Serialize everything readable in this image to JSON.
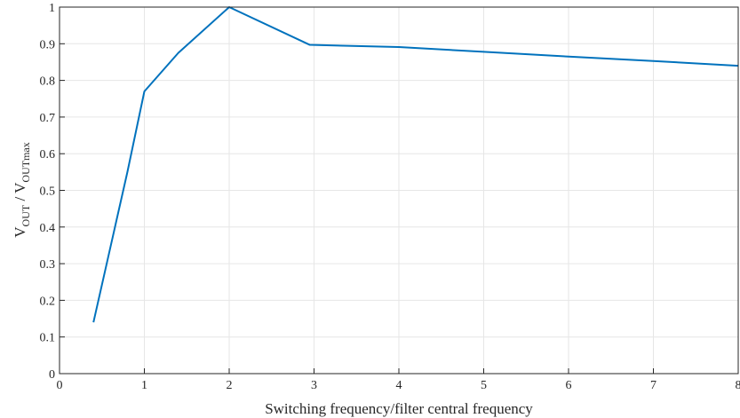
{
  "chart_data": {
    "type": "line",
    "xlabel": "Switching frequency/filter central frequency",
    "ylabel": {
      "v1": "V",
      "sub1": "OUT",
      "sep": " / ",
      "v2": "V",
      "sub2": "OUTmax"
    },
    "xlim": [
      0,
      8
    ],
    "ylim": [
      0,
      1
    ],
    "xticks": [
      "0",
      "1",
      "2",
      "3",
      "4",
      "5",
      "6",
      "7",
      "8"
    ],
    "yticks": [
      "0",
      "0.1",
      "0.2",
      "0.3",
      "0.4",
      "0.5",
      "0.6",
      "0.7",
      "0.8",
      "0.9",
      "1"
    ],
    "grid": true,
    "series": [
      {
        "color": "#0072BD",
        "x": [
          0.4,
          0.8,
          1.0,
          1.4,
          2.0,
          2.95,
          4.0,
          5.0,
          6.0,
          7.0,
          8.0
        ],
        "y": [
          0.14,
          0.55,
          0.77,
          0.875,
          1.0,
          0.897,
          0.891,
          0.878,
          0.865,
          0.853,
          0.84
        ]
      }
    ]
  }
}
